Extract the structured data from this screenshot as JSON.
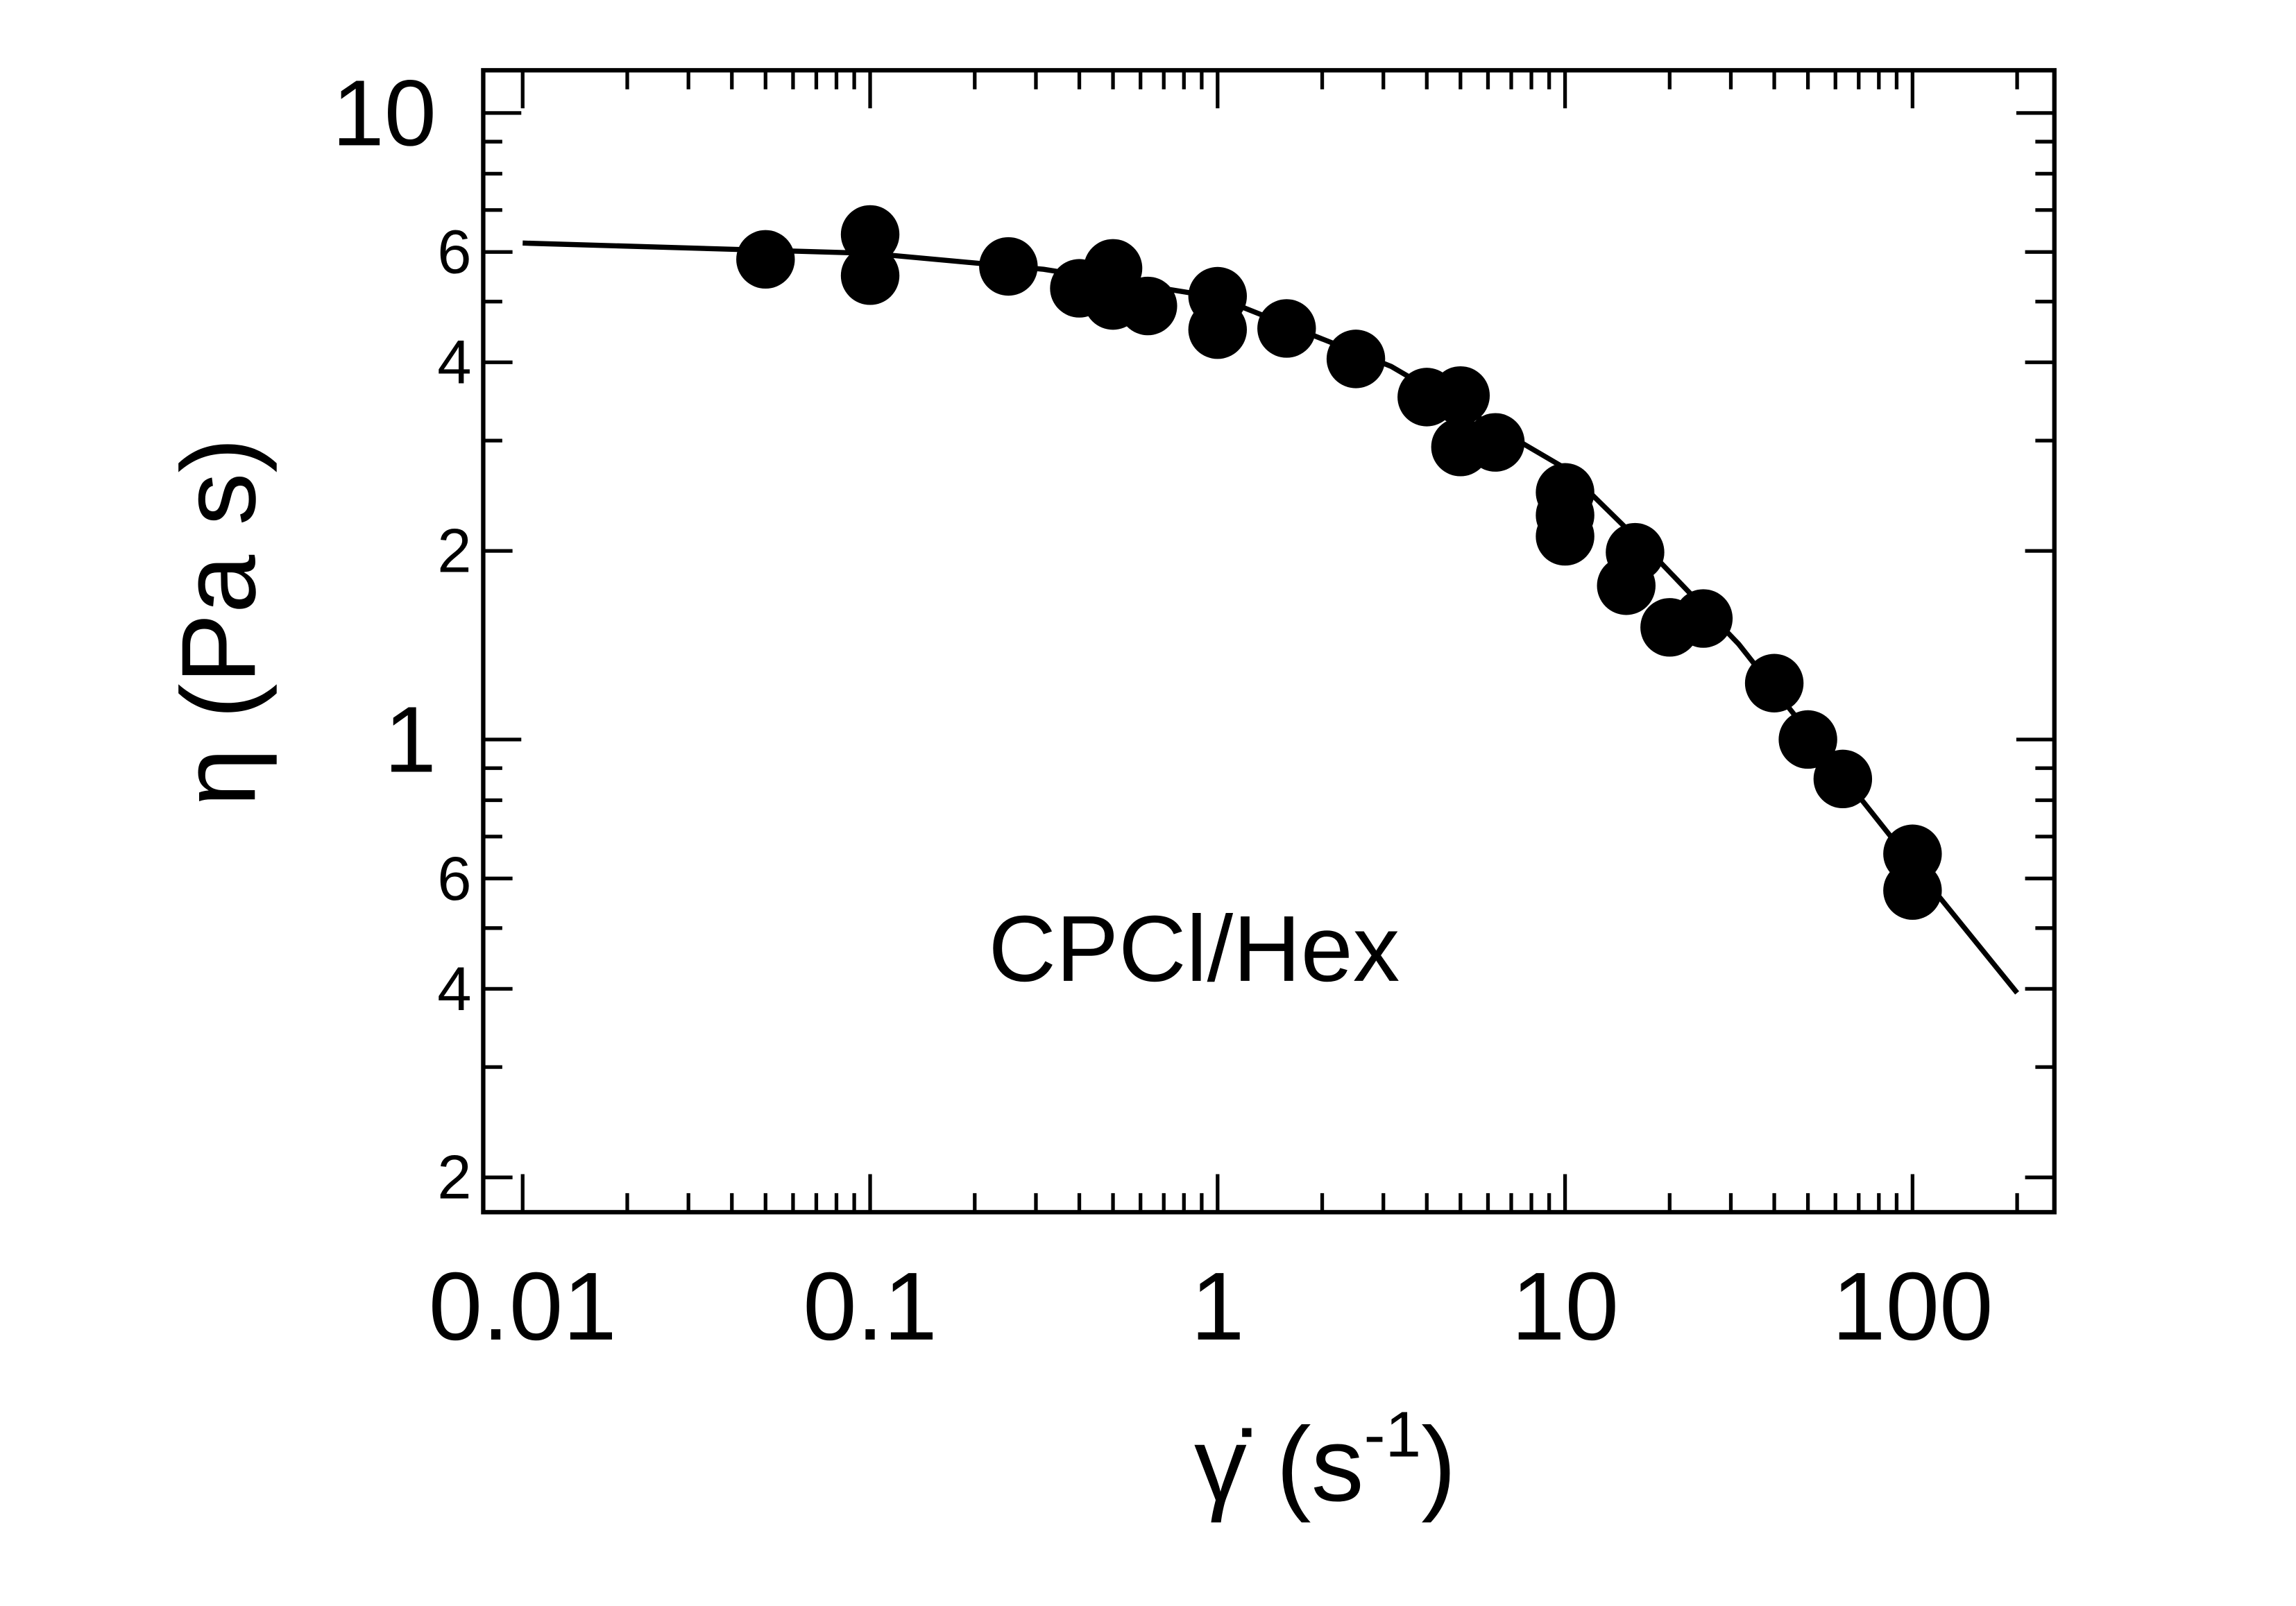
{
  "chart_data": {
    "type": "scatter",
    "xlabel": [
      "γ̇ (s",
      "-1",
      ")"
    ],
    "ylabel": "η (Pa s)",
    "annotation": "CPCl/Hex",
    "log_x": true,
    "log_y": true,
    "color": "#000000",
    "x": [
      0.05,
      0.1,
      0.1,
      0.25,
      0.4,
      0.5,
      0.5,
      0.63,
      1,
      1,
      1.58,
      2.5,
      4.0,
      5.0,
      5.0,
      6.3,
      10,
      10,
      10,
      15.9,
      15,
      20,
      25,
      40,
      50,
      63,
      100,
      100
    ],
    "values": [
      5.84,
      6.4,
      5.5,
      5.69,
      5.25,
      5.65,
      5.02,
      4.92,
      5.1,
      4.51,
      4.53,
      4.05,
      3.52,
      3.54,
      2.93,
      2.98,
      2.48,
      2.28,
      2.11,
      1.99,
      1.76,
      1.51,
      1.56,
      1.23,
      1.0,
      0.865,
      0.657,
      0.574
    ],
    "fit": {
      "x": [
        0.01,
        0.1,
        0.316,
        1,
        3.16,
        10,
        17.8,
        31.6,
        56.2,
        100,
        200
      ],
      "values": [
        6.2,
        5.97,
        5.63,
        5.08,
        3.94,
        2.71,
        1.98,
        1.42,
        0.947,
        0.633,
        0.394
      ]
    },
    "xlim": [
      0.0077,
      256
    ],
    "ylim": [
      0.176,
      11.7
    ],
    "xticks": [
      0.01,
      0.1,
      1,
      10,
      100
    ],
    "yticks": [
      10,
      {
        "value": 6,
        "label": "6"
      },
      {
        "value": 4,
        "label": "4"
      },
      {
        "value": 2,
        "label": "2"
      },
      1,
      {
        "value": 0.6,
        "label": "6"
      },
      {
        "value": 0.4,
        "label": "4"
      },
      {
        "value": 0.2,
        "label": "2"
      }
    ],
    "xminorticks": [
      0.02,
      0.03,
      0.04,
      0.05,
      0.06,
      0.07,
      0.08,
      0.09,
      0.2,
      0.3,
      0.4,
      0.5,
      0.6,
      0.7,
      0.8,
      0.9,
      2,
      3,
      4,
      5,
      6,
      7,
      8,
      9,
      20,
      30,
      40,
      50,
      60,
      70,
      80,
      90,
      200
    ],
    "yminorticks": [
      3,
      5,
      7,
      8,
      9,
      0.3,
      0.5,
      0.7,
      0.8,
      0.9
    ]
  }
}
